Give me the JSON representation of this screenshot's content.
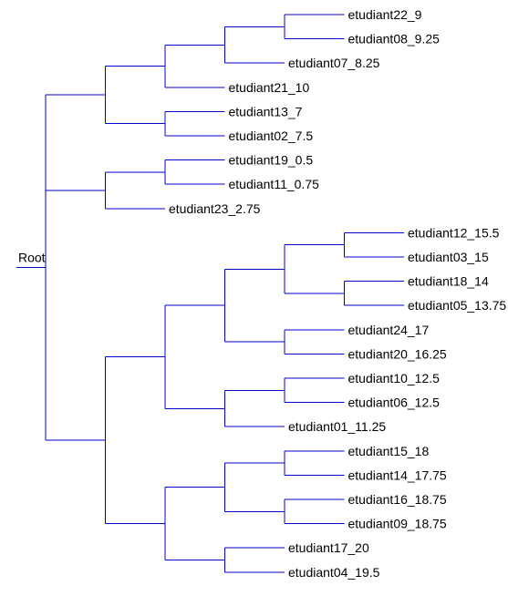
{
  "root_label": "Root",
  "edge_color": "#0000cc",
  "tree": {
    "children": [
      {
        "children": [
          {
            "children": [
              {
                "children": [
                  {
                    "children": [
                      {
                        "label": "etudiant22_9"
                      },
                      {
                        "label": "etudiant08_9.25"
                      }
                    ]
                  },
                  {
                    "label": "etudiant07_8.25"
                  }
                ]
              },
              {
                "label": "etudiant21_10"
              }
            ]
          },
          {
            "children": [
              {
                "label": "etudiant13_7"
              },
              {
                "label": "etudiant02_7.5"
              }
            ]
          }
        ]
      },
      {
        "children": [
          {
            "children": [
              {
                "label": "etudiant19_0.5"
              },
              {
                "label": "etudiant11_0.75"
              }
            ]
          },
          {
            "label": "etudiant23_2.75"
          }
        ]
      },
      {
        "children": [
          {
            "children": [
              {
                "children": [
                  {
                    "children": [
                      {
                        "children": [
                          {
                            "label": "etudiant12_15.5"
                          },
                          {
                            "label": "etudiant03_15"
                          }
                        ]
                      },
                      {
                        "children": [
                          {
                            "label": "etudiant18_14"
                          },
                          {
                            "label": "etudiant05_13.75"
                          }
                        ]
                      }
                    ]
                  },
                  {
                    "children": [
                      {
                        "label": "etudiant24_17"
                      },
                      {
                        "label": "etudiant20_16.25"
                      }
                    ]
                  }
                ]
              },
              {
                "children": [
                  {
                    "children": [
                      {
                        "label": "etudiant10_12.5"
                      },
                      {
                        "label": "etudiant06_12.5"
                      }
                    ]
                  },
                  {
                    "label": "etudiant01_11.25"
                  }
                ]
              }
            ]
          },
          {
            "children": [
              {
                "children": [
                  {
                    "children": [
                      {
                        "label": "etudiant15_18"
                      },
                      {
                        "label": "etudiant14_17.75"
                      }
                    ]
                  },
                  {
                    "children": [
                      {
                        "label": "etudiant16_18.75"
                      },
                      {
                        "label": "etudiant09_18.75"
                      }
                    ]
                  }
                ]
              },
              {
                "children": [
                  {
                    "label": "etudiant17_20"
                  },
                  {
                    "label": "etudiant04_19.5"
                  }
                ]
              }
            ]
          }
        ]
      }
    ]
  }
}
